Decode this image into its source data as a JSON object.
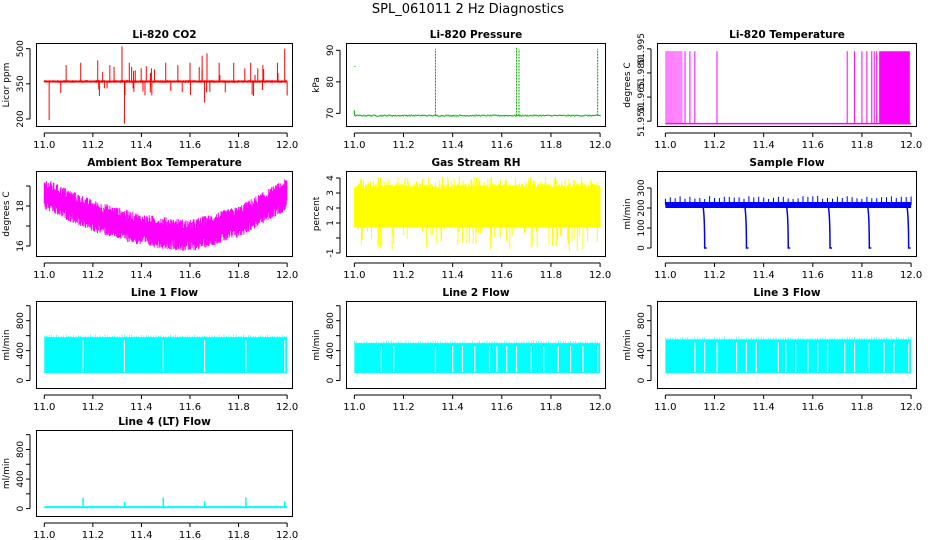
{
  "page_title": "SPL_061011  2 Hz Diagnostics",
  "x_tick_labels": [
    "11.0",
    "11.2",
    "11.4",
    "11.6",
    "11.8",
    "12.0"
  ],
  "chart_data": [
    {
      "type": "line",
      "title": "Li-820 CO2",
      "ylabel": "Licor ppm",
      "color": "#ff0000",
      "xlim": [
        10.97,
        12.02
      ],
      "ylim": [
        170,
        520
      ],
      "yticks": [
        200,
        350,
        500
      ],
      "yticklabels": [
        "200",
        "350",
        "500"
      ],
      "baseline": 360,
      "noise": 12,
      "spikes": [
        [
          11.02,
          195
        ],
        [
          11.09,
          430
        ],
        [
          11.15,
          440
        ],
        [
          11.22,
          450
        ],
        [
          11.27,
          430
        ],
        [
          11.32,
          510
        ],
        [
          11.33,
          180
        ],
        [
          11.35,
          440
        ],
        [
          11.42,
          425
        ],
        [
          11.5,
          440
        ],
        [
          11.55,
          430
        ],
        [
          11.6,
          440
        ],
        [
          11.65,
          470
        ],
        [
          11.66,
          270
        ],
        [
          11.67,
          480
        ],
        [
          11.72,
          440
        ],
        [
          11.78,
          440
        ],
        [
          11.85,
          440
        ],
        [
          11.9,
          430
        ],
        [
          11.96,
          440
        ],
        [
          11.99,
          500
        ],
        [
          12.0,
          300
        ]
      ]
    },
    {
      "type": "line",
      "title": "Li-820 Pressure",
      "ylabel": "kPa",
      "color": "#00aa00",
      "xlim": [
        10.97,
        12.02
      ],
      "ylim": [
        66,
        92
      ],
      "yticks": [
        70,
        80,
        90
      ],
      "yticklabels": [
        "70",
        "80",
        "90"
      ],
      "baseline": 69.3,
      "noise": 0.4,
      "spikes": [
        [
          11.33,
          90.5
        ],
        [
          11.66,
          90.8
        ],
        [
          11.67,
          90.5
        ],
        [
          11.99,
          90.5
        ]
      ]
    },
    {
      "type": "line",
      "title": "Li-820 Temperature",
      "ylabel": "degrees C",
      "color": "#ff00ff",
      "xlim": [
        10.97,
        12.02
      ],
      "ylim": [
        51.947,
        51.998
      ],
      "yticks": [
        51.95,
        51.965,
        51.98,
        51.995
      ],
      "yticklabels": [
        "51.950",
        "51.965",
        "51.980",
        "51.995"
      ],
      "baseline": 51.9485,
      "high": 51.9935,
      "dense_ranges": [
        [
          11.0,
          11.07
        ],
        [
          11.87,
          11.995
        ]
      ],
      "sparse_x": [
        11.08,
        11.1,
        11.12,
        11.21,
        11.74,
        11.77,
        11.8,
        11.82,
        11.84,
        11.85,
        11.86
      ]
    },
    {
      "type": "line",
      "title": "Ambient Box Temperature",
      "ylabel": "degrees C",
      "color": "#ff00ff",
      "xlim": [
        10.97,
        12.02
      ],
      "ylim": [
        15.5,
        19.7
      ],
      "yticks": [
        16,
        17,
        18,
        19
      ],
      "yticklabels": [
        "16",
        "",
        "18",
        ""
      ],
      "curve": [
        [
          11.0,
          18.6
        ],
        [
          11.2,
          17.5
        ],
        [
          11.4,
          16.8
        ],
        [
          11.6,
          16.5
        ],
        [
          11.8,
          17.2
        ],
        [
          12.0,
          18.6
        ]
      ],
      "halfband": 0.8
    },
    {
      "type": "line",
      "title": "Gas Stream RH",
      "ylabel": "percent",
      "color": "#ffff00",
      "xlim": [
        10.97,
        12.02
      ],
      "ylim": [
        -1.2,
        4.4
      ],
      "yticks": [
        -1,
        0,
        1,
        2,
        3,
        4
      ],
      "yticklabels": [
        "-1",
        "",
        "1",
        "2",
        "3",
        "4"
      ],
      "band": [
        0.7,
        3.6
      ],
      "spike_lo": -0.9,
      "spike_hi": 4.1
    },
    {
      "type": "line",
      "title": "Sample Flow",
      "ylabel": "ml/min",
      "color": "#0000ff",
      "xlim": [
        10.97,
        12.02
      ],
      "ylim": [
        -40,
        380
      ],
      "yticks": [
        0,
        100,
        200,
        300
      ],
      "yticklabels": [
        "0",
        "100",
        "200",
        "300"
      ],
      "baseline": 215,
      "halfband": 15,
      "spike_every": 0.02,
      "spike_hi": 260,
      "dips": [
        11.16,
        11.33,
        11.5,
        11.67,
        11.83,
        11.99
      ]
    },
    {
      "type": "line",
      "title": "Line 1 Flow",
      "ylabel": "ml/min",
      "color": "#00ffff",
      "xlim": [
        10.97,
        12.02
      ],
      "ylim": [
        -100,
        1050
      ],
      "yticks": [
        0,
        200,
        400,
        600,
        800,
        1000
      ],
      "yticklabels": [
        "0",
        "",
        "400",
        "",
        "800",
        ""
      ],
      "band": [
        100,
        580
      ],
      "xrange": [
        11.0,
        12.0
      ],
      "gaps": [
        11.16,
        11.33,
        11.49,
        11.66,
        11.83,
        11.99
      ]
    },
    {
      "type": "line",
      "title": "Line 2 Flow",
      "ylabel": "ml/min",
      "color": "#00ffff",
      "xlim": [
        10.97,
        12.02
      ],
      "ylim": [
        -100,
        1050
      ],
      "yticks": [
        0,
        200,
        400,
        600,
        800,
        1000
      ],
      "yticklabels": [
        "0",
        "",
        "400",
        "",
        "800",
        ""
      ],
      "band": [
        100,
        500
      ],
      "xrange": [
        11.0,
        12.0
      ],
      "gaps": [
        11.11,
        11.16,
        11.33,
        11.4,
        11.44,
        11.49,
        11.55,
        11.58,
        11.62,
        11.66,
        11.72,
        11.77,
        11.83,
        11.88,
        11.93,
        11.99
      ]
    },
    {
      "type": "line",
      "title": "Line 3 Flow",
      "ylabel": "ml/min",
      "color": "#00ffff",
      "xlim": [
        10.97,
        12.02
      ],
      "ylim": [
        -100,
        1050
      ],
      "yticks": [
        0,
        200,
        400,
        600,
        800,
        1000
      ],
      "yticklabels": [
        "0",
        "",
        "400",
        "",
        "800",
        ""
      ],
      "band": [
        100,
        550
      ],
      "xrange": [
        11.0,
        12.0
      ],
      "gaps": [
        11.12,
        11.16,
        11.21,
        11.29,
        11.33,
        11.37,
        11.46,
        11.49,
        11.53,
        11.58,
        11.62,
        11.66,
        11.73,
        11.77,
        11.83,
        11.89,
        11.93,
        11.99
      ]
    },
    {
      "type": "line",
      "title": "Line 4 (LT) Flow",
      "ylabel": "ml/min",
      "color": "#00ffff",
      "xlim": [
        10.97,
        12.02
      ],
      "ylim": [
        -100,
        1050
      ],
      "yticks": [
        0,
        200,
        400,
        600,
        800,
        1000
      ],
      "yticklabels": [
        "0",
        "",
        "400",
        "",
        "800",
        ""
      ],
      "baseline": 20,
      "xrange": [
        11.0,
        12.0
      ],
      "spikes": [
        [
          11.16,
          150
        ],
        [
          11.33,
          90
        ],
        [
          11.49,
          150
        ],
        [
          11.66,
          100
        ],
        [
          11.83,
          150
        ],
        [
          11.99,
          100
        ]
      ]
    }
  ]
}
